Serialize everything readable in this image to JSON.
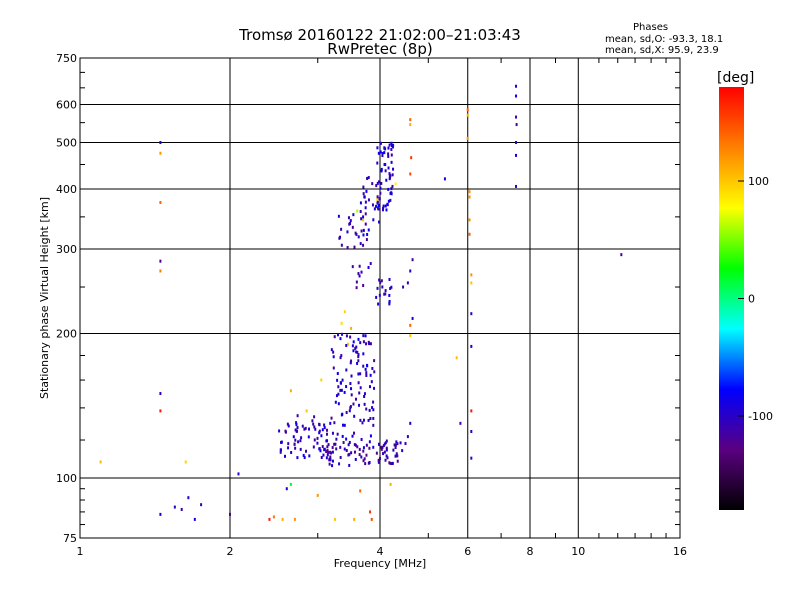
{
  "header": {
    "title_line1": "Tromsø 20160122 21:02:00–21:03:43",
    "title_line2": "RwPretec (8p)"
  },
  "stats": {
    "header": "Phases",
    "o_mode": "mean, sd,O: -93.3, 18.1",
    "x_mode": "mean, sd,X:  95.9, 23.9"
  },
  "colorbar": {
    "unit": "[deg]",
    "ticks": [
      100,
      0,
      -100
    ],
    "range": [
      -180,
      180
    ],
    "colormap": [
      "#000000",
      "#5a0080",
      "#0000ff",
      "#00ffff",
      "#00ff00",
      "#ffff00",
      "#ff8000",
      "#ff0000"
    ]
  },
  "chart_data": {
    "type": "scatter",
    "title": "Tromsø 20160122 21:02:00–21:03:43",
    "subtitle": "RwPretec (8p)",
    "xlabel": "Frequency [MHz]",
    "ylabel": "Stationary phase Virtual Height [km]",
    "x_scale": "log2",
    "y_scale": "log",
    "xlim": [
      1,
      16
    ],
    "ylim": [
      75,
      750
    ],
    "x_ticks": [
      1,
      2,
      4,
      6,
      8,
      10,
      16
    ],
    "y_ticks": [
      75,
      100,
      200,
      300,
      400,
      500,
      600,
      750
    ],
    "grid": true,
    "color_encoding": "phase [deg]",
    "points": [
      {
        "x": 1.45,
        "y": 500,
        "phase": -95
      },
      {
        "x": 1.45,
        "y": 475,
        "phase": 120
      },
      {
        "x": 1.45,
        "y": 375,
        "phase": 140
      },
      {
        "x": 1.45,
        "y": 283,
        "phase": -120
      },
      {
        "x": 1.45,
        "y": 270,
        "phase": 130
      },
      {
        "x": 1.45,
        "y": 150,
        "phase": -110
      },
      {
        "x": 1.45,
        "y": 138,
        "phase": 170
      },
      {
        "x": 1.45,
        "y": 84,
        "phase": -90
      },
      {
        "x": 1.1,
        "y": 108,
        "phase": 105
      },
      {
        "x": 1.55,
        "y": 87,
        "phase": -100
      },
      {
        "x": 1.6,
        "y": 86,
        "phase": -110
      },
      {
        "x": 1.65,
        "y": 91,
        "phase": -95
      },
      {
        "x": 1.7,
        "y": 82,
        "phase": -90
      },
      {
        "x": 1.75,
        "y": 88,
        "phase": -105
      },
      {
        "x": 1.63,
        "y": 108,
        "phase": 95
      },
      {
        "x": 2.08,
        "y": 102,
        "phase": -100
      },
      {
        "x": 2.0,
        "y": 84,
        "phase": -120
      },
      {
        "x": 2.4,
        "y": 82,
        "phase": 170
      },
      {
        "x": 2.45,
        "y": 83,
        "phase": 130
      },
      {
        "x": 2.55,
        "y": 82,
        "phase": 110
      },
      {
        "x": 2.6,
        "y": 95,
        "phase": -90
      },
      {
        "x": 2.65,
        "y": 97,
        "phase": 20
      },
      {
        "x": 2.7,
        "y": 82,
        "phase": 120
      },
      {
        "x": 3.0,
        "y": 92,
        "phase": 120
      },
      {
        "x": 3.25,
        "y": 82,
        "phase": 100
      },
      {
        "x": 3.55,
        "y": 82,
        "phase": 110
      },
      {
        "x": 3.85,
        "y": 82,
        "phase": 150
      },
      {
        "x": 3.82,
        "y": 85,
        "phase": 160
      },
      {
        "x": 3.65,
        "y": 94,
        "phase": 140
      },
      {
        "x": 4.2,
        "y": 97,
        "phase": 110
      },
      {
        "x": 2.65,
        "y": 152,
        "phase": 110
      },
      {
        "x": 2.85,
        "y": 138,
        "phase": 100
      },
      {
        "x": 3.05,
        "y": 160,
        "phase": 95
      },
      {
        "x": 3.35,
        "y": 210,
        "phase": 90
      },
      {
        "x": 3.4,
        "y": 222,
        "phase": 95
      },
      {
        "x": 3.45,
        "y": 190,
        "phase": 100
      },
      {
        "x": 3.5,
        "y": 205,
        "phase": 110
      },
      {
        "x": 3.6,
        "y": 360,
        "phase": 60
      },
      {
        "x": 3.7,
        "y": 345,
        "phase": 100
      },
      {
        "x": 3.95,
        "y": 380,
        "phase": 90
      },
      {
        "x": 4.3,
        "y": 410,
        "phase": 80
      },
      {
        "x": 4.45,
        "y": 250,
        "phase": -110
      },
      {
        "x": 4.55,
        "y": 255,
        "phase": -105
      },
      {
        "x": 4.6,
        "y": 270,
        "phase": -100
      },
      {
        "x": 4.65,
        "y": 285,
        "phase": -120
      },
      {
        "x": 4.65,
        "y": 215,
        "phase": -95
      },
      {
        "x": 4.6,
        "y": 208,
        "phase": 140
      },
      {
        "x": 4.6,
        "y": 198,
        "phase": 100
      },
      {
        "x": 4.6,
        "y": 430,
        "phase": 150
      },
      {
        "x": 4.62,
        "y": 465,
        "phase": 160
      },
      {
        "x": 4.6,
        "y": 545,
        "phase": 110
      },
      {
        "x": 4.6,
        "y": 558,
        "phase": 140
      },
      {
        "x": 4.6,
        "y": 130,
        "phase": -95
      },
      {
        "x": 4.55,
        "y": 122,
        "phase": -105
      },
      {
        "x": 4.5,
        "y": 118,
        "phase": -110
      },
      {
        "x": 5.4,
        "y": 420,
        "phase": -90
      },
      {
        "x": 5.7,
        "y": 178,
        "phase": 105
      },
      {
        "x": 5.8,
        "y": 130,
        "phase": -110
      },
      {
        "x": 6.0,
        "y": 585,
        "phase": 140
      },
      {
        "x": 6.0,
        "y": 570,
        "phase": 110
      },
      {
        "x": 6.0,
        "y": 510,
        "phase": 120
      },
      {
        "x": 6.05,
        "y": 395,
        "phase": 120
      },
      {
        "x": 6.05,
        "y": 385,
        "phase": 120
      },
      {
        "x": 6.05,
        "y": 345,
        "phase": 120
      },
      {
        "x": 6.05,
        "y": 322,
        "phase": 140
      },
      {
        "x": 6.1,
        "y": 265,
        "phase": 120
      },
      {
        "x": 6.1,
        "y": 255,
        "phase": 100
      },
      {
        "x": 6.1,
        "y": 220,
        "phase": -100
      },
      {
        "x": 6.1,
        "y": 188,
        "phase": -90
      },
      {
        "x": 6.1,
        "y": 138,
        "phase": 170
      },
      {
        "x": 6.1,
        "y": 125,
        "phase": -95
      },
      {
        "x": 6.1,
        "y": 110,
        "phase": -105
      },
      {
        "x": 7.5,
        "y": 655,
        "phase": -95
      },
      {
        "x": 7.5,
        "y": 625,
        "phase": -90
      },
      {
        "x": 7.5,
        "y": 565,
        "phase": -110
      },
      {
        "x": 7.52,
        "y": 545,
        "phase": -120
      },
      {
        "x": 7.5,
        "y": 500,
        "phase": -100
      },
      {
        "x": 7.5,
        "y": 470,
        "phase": -90
      },
      {
        "x": 7.5,
        "y": 405,
        "phase": -100
      },
      {
        "x": 12.2,
        "y": 292,
        "phase": -115
      }
    ],
    "clusters": [
      {
        "x_range": [
          2.5,
          3.2
        ],
        "y_range": [
          110,
          135
        ],
        "phase": -100,
        "count": 70
      },
      {
        "x_range": [
          3.1,
          4.45
        ],
        "y_range": [
          106,
          120
        ],
        "phase": -110,
        "count": 90
      },
      {
        "x_range": [
          3.2,
          3.9
        ],
        "y_range": [
          120,
          200
        ],
        "phase": -100,
        "count": 110
      },
      {
        "x_range": [
          3.3,
          3.8
        ],
        "y_range": [
          300,
          360
        ],
        "phase": -100,
        "count": 26
      },
      {
        "x_range": [
          3.65,
          4.0
        ],
        "y_range": [
          340,
          430
        ],
        "phase": -100,
        "count": 26
      },
      {
        "x_range": [
          3.95,
          4.25
        ],
        "y_range": [
          360,
          500
        ],
        "phase": -95,
        "count": 60
      },
      {
        "x_range": [
          3.9,
          4.25
        ],
        "y_range": [
          230,
          260
        ],
        "phase": -100,
        "count": 18
      },
      {
        "x_range": [
          3.5,
          3.85
        ],
        "y_range": [
          245,
          280
        ],
        "phase": -110,
        "count": 10
      }
    ]
  }
}
